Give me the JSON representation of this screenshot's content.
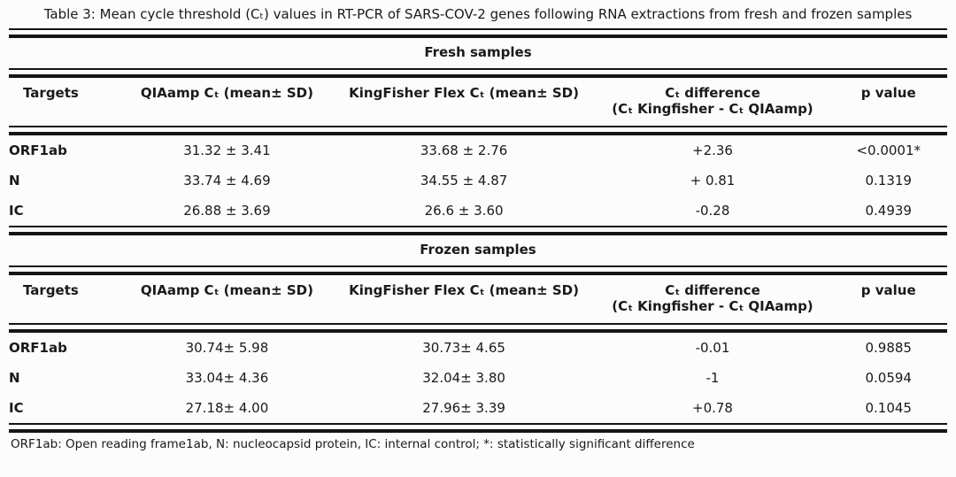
{
  "title": "Table 3: Mean cycle threshold (Cₜ) values in RT-PCR of SARS-COV-2 genes following RNA extractions from fresh and frozen samples",
  "columns": {
    "targets": "Targets",
    "qiaamp": "QIAamp Cₜ (mean± SD)",
    "kingfisher": "KingFisher Flex Cₜ (mean± SD)",
    "difference_line1": "Cₜ difference",
    "difference_line2": "(Cₜ Kingfisher - Cₜ QIAamp)",
    "p_value": "p value"
  },
  "sections": [
    {
      "heading": "Fresh samples",
      "rows": [
        {
          "target": "ORF1ab",
          "qiaamp": "31.32 ± 3.41",
          "kingfisher": "33.68 ± 2.76",
          "difference": "+2.36",
          "p_value": "<0.0001*"
        },
        {
          "target": "N",
          "qiaamp": "33.74 ± 4.69",
          "kingfisher": "34.55 ± 4.87",
          "difference": "+ 0.81",
          "p_value": "0.1319"
        },
        {
          "target": "IC",
          "qiaamp": "26.88 ± 3.69",
          "kingfisher": "26.6 ± 3.60",
          "difference": "-0.28",
          "p_value": "0.4939"
        }
      ]
    },
    {
      "heading": "Frozen samples",
      "rows": [
        {
          "target": "ORF1ab",
          "qiaamp": "30.74± 5.98",
          "kingfisher": "30.73± 4.65",
          "difference": "-0.01",
          "p_value": "0.9885"
        },
        {
          "target": "N",
          "qiaamp": "33.04± 4.36",
          "kingfisher": "32.04± 3.80",
          "difference": "-1",
          "p_value": "0.0594"
        },
        {
          "target": "IC",
          "qiaamp": "27.18± 4.00",
          "kingfisher": "27.96± 3.39",
          "difference": "+0.78",
          "p_value": "0.1045"
        }
      ]
    }
  ],
  "footnote": "ORF1ab: Open reading frame1ab, N: nucleocapsid protein, IC: internal control; *: statistically significant difference",
  "colors": {
    "text": "#1a1a1a",
    "rule": "#151515",
    "background": "#fcfcfc"
  }
}
